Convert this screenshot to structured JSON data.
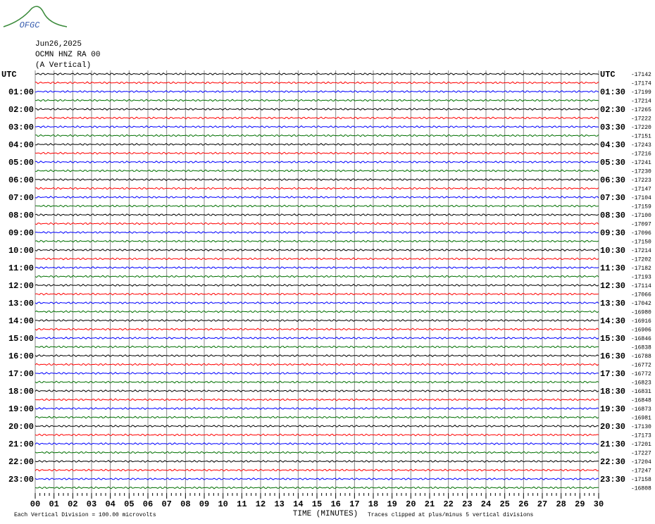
{
  "chart_data": {
    "type": "helicorder",
    "logo": "OFGC",
    "title": [
      "Jun26,2025",
      "OCMN HNZ RA 00",
      "(A Vertical)"
    ],
    "x_label": "TIME (MINUTES)",
    "footer_left": "Each Vertical Division =  100.00 microvolts",
    "footer_right": "Traces clipped at plus/minus 5 vertical divisions",
    "xlim": [
      0,
      30
    ],
    "xticks": [
      {
        "value": 0,
        "label": "00"
      },
      {
        "value": 1,
        "label": "01"
      },
      {
        "value": 2,
        "label": "02"
      },
      {
        "value": 3,
        "label": "03"
      },
      {
        "value": 4,
        "label": "04"
      },
      {
        "value": 5,
        "label": "05"
      },
      {
        "value": 6,
        "label": "06"
      },
      {
        "value": 7,
        "label": "07"
      },
      {
        "value": 8,
        "label": "08"
      },
      {
        "value": 9,
        "label": "09"
      },
      10,
      11,
      12,
      13,
      14,
      15,
      16,
      17,
      18,
      19,
      20,
      21,
      22,
      23,
      24,
      25,
      26,
      27,
      28,
      29,
      30
    ],
    "left_labels": [
      "UTC",
      "01:00",
      "02:00",
      "03:00",
      "04:00",
      "05:00",
      "06:00",
      "07:00",
      "08:00",
      "09:00",
      "10:00",
      "11:00",
      "12:00",
      "13:00",
      "14:00",
      "15:00",
      "16:00",
      "17:00",
      "18:00",
      "19:00",
      "20:00",
      "21:00",
      "22:00",
      "23:00"
    ],
    "right_labels": [
      "UTC",
      "01:30",
      "02:30",
      "03:30",
      "04:30",
      "05:30",
      "06:30",
      "07:30",
      "08:30",
      "09:30",
      "10:30",
      "11:30",
      "12:30",
      "13:30",
      "14:30",
      "15:30",
      "16:30",
      "17:30",
      "18:30",
      "19:30",
      "20:30",
      "21:30",
      "22:30",
      "23:30"
    ],
    "trace_offsets": [
      -17142,
      -17174,
      -17199,
      -17214,
      -17265,
      -17222,
      -17220,
      -17151,
      -17243,
      -17216,
      -17241,
      -17230,
      -17223,
      -17147,
      -17104,
      -17159,
      -17100,
      -17097,
      -17096,
      -17150,
      -17214,
      -17202,
      -17182,
      -17193,
      -17114,
      -17066,
      -17042,
      -16980,
      -16916,
      -16906,
      -16846,
      -16838,
      -16788,
      -16772,
      -16772,
      -16823,
      -16831,
      -16848,
      -16873,
      -16981,
      -17130,
      -17173,
      -17201,
      -17227,
      -17204,
      -17247,
      -17158,
      -16808
    ],
    "trace_colors": [
      "#000000",
      "#ff0000",
      "#0000ff",
      "#007000"
    ],
    "grid": true
  }
}
